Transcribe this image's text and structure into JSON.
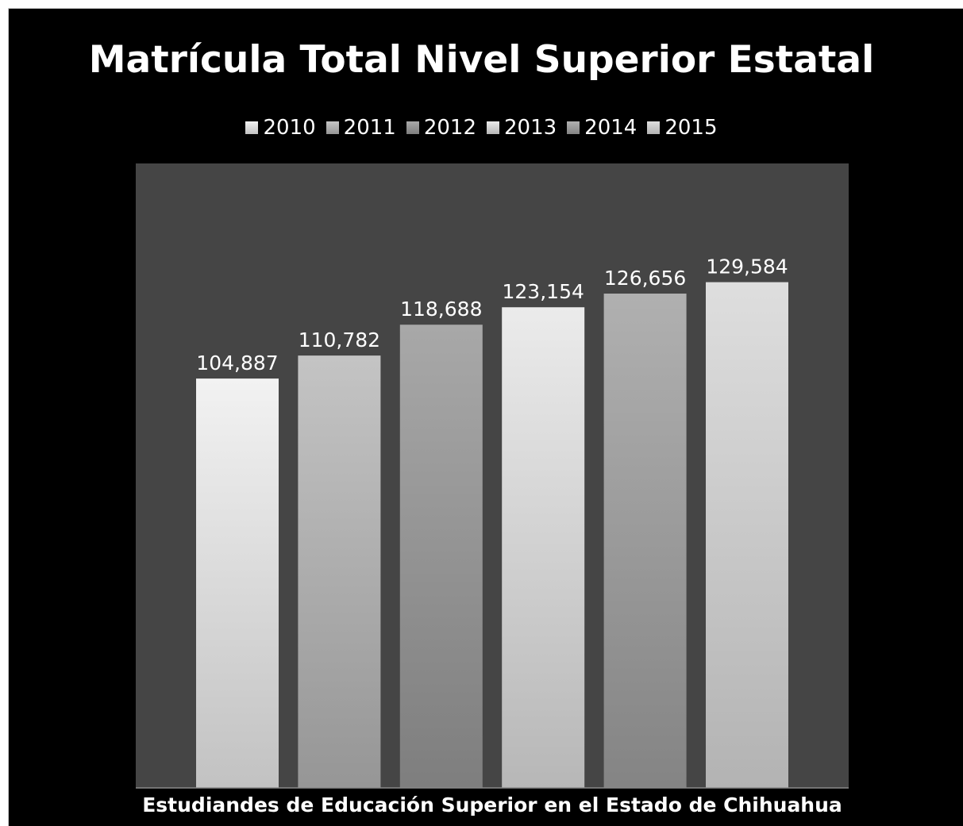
{
  "chart_data": {
    "type": "bar",
    "title": "Matrícula Total Nivel Superior Estatal",
    "categories": [
      "Estudiandes de Educación Superior en el Estado de Chihuahua"
    ],
    "series": [
      {
        "name": "2010",
        "values": [
          104887
        ],
        "label": "104,887",
        "color_top": "#f2f2f2",
        "color_bottom": "#c2c2c2"
      },
      {
        "name": "2011",
        "values": [
          110782
        ],
        "label": "110,782",
        "color_top": "#c4c4c4",
        "color_bottom": "#969696"
      },
      {
        "name": "2012",
        "values": [
          118688
        ],
        "label": "118,688",
        "color_top": "#a8a8a8",
        "color_bottom": "#7e7e7e"
      },
      {
        "name": "2013",
        "values": [
          123154
        ],
        "label": "123,154",
        "color_top": "#ebebeb",
        "color_bottom": "#b7b7b7"
      },
      {
        "name": "2014",
        "values": [
          126656
        ],
        "label": "126,656",
        "color_top": "#b0b0b0",
        "color_bottom": "#848484"
      },
      {
        "name": "2015",
        "values": [
          129584
        ],
        "label": "129,584",
        "color_top": "#dedede",
        "color_bottom": "#b3b3b3"
      }
    ],
    "ylim": [
      0,
      160000
    ],
    "grid": false,
    "legend_position": "top",
    "xlabel": "",
    "ylabel": ""
  },
  "colors": {
    "background": "#000000",
    "plot_area": "#454545",
    "text": "#ffffff"
  }
}
